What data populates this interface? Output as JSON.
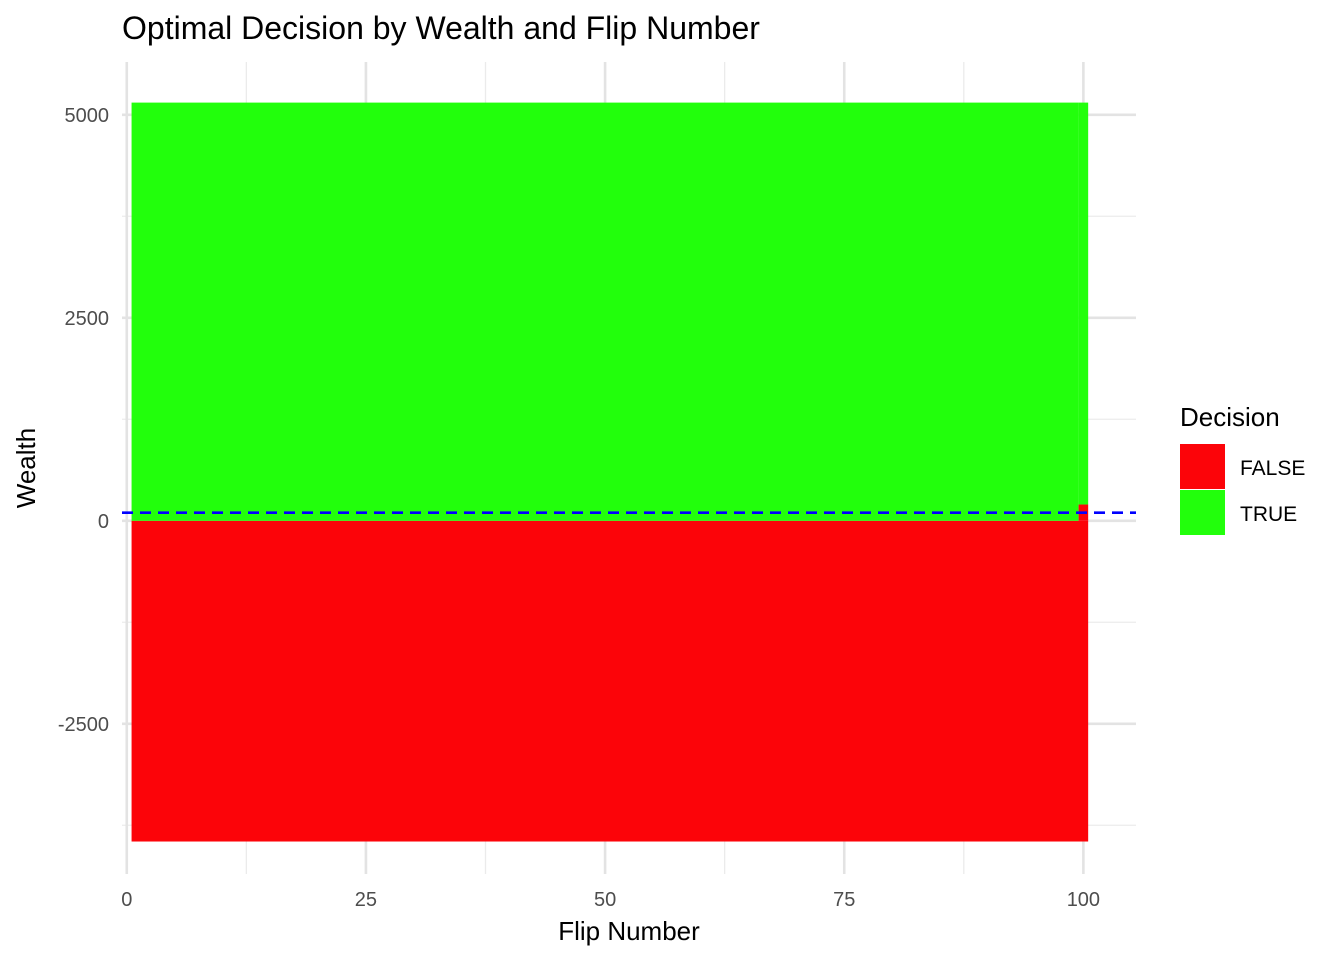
{
  "chart_data": {
    "type": "heatmap",
    "title": "Optimal Decision by Wealth and Flip Number",
    "xlabel": "Flip Number",
    "ylabel": "Wealth",
    "xlim": [
      -0.5,
      105.5
    ],
    "ylim": [
      -4350,
      5650
    ],
    "x_ticks": [
      0,
      25,
      50,
      75,
      100
    ],
    "x_tick_labels": [
      "0",
      "25",
      "50",
      "75",
      "100"
    ],
    "y_ticks": [
      -2500,
      0,
      2500,
      5000
    ],
    "y_tick_labels": [
      "-2500",
      "0",
      "2500",
      "5000"
    ],
    "grid": true,
    "legend": {
      "title": "Decision",
      "position": "right",
      "entries": [
        {
          "label": "FALSE",
          "color": "#FC0409"
        },
        {
          "label": "TRUE",
          "color": "#22FF0C"
        }
      ]
    },
    "regions": [
      {
        "decision": "FALSE",
        "x": [
          0.5,
          100.5
        ],
        "y": [
          -3950,
          0
        ]
      },
      {
        "decision": "TRUE",
        "x": [
          0.5,
          99.5
        ],
        "y": [
          0,
          5150
        ]
      },
      {
        "decision": "TRUE",
        "x": [
          99.5,
          100.5
        ],
        "y": [
          200,
          5150
        ]
      },
      {
        "decision": "FALSE",
        "x": [
          99.5,
          100.5
        ],
        "y": [
          0,
          200
        ]
      }
    ],
    "reference_line": {
      "orientation": "horizontal",
      "y": 100,
      "style": "dashed",
      "color": "#0000FF"
    }
  }
}
